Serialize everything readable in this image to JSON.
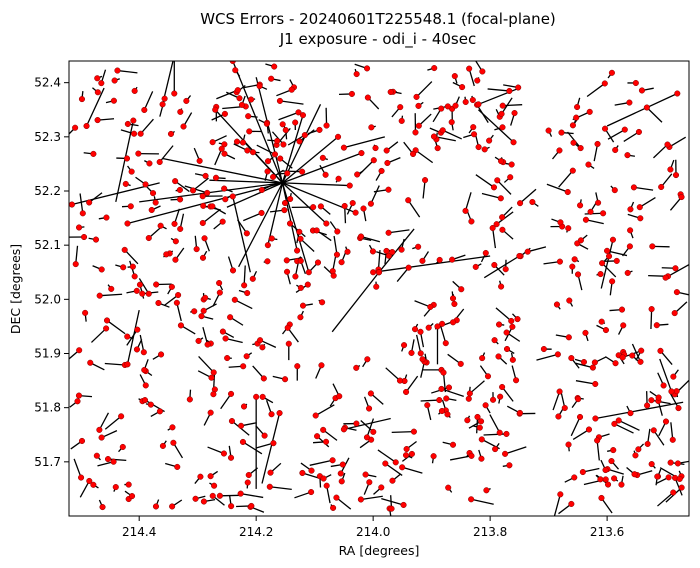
{
  "chart_data": {
    "type": "scatter",
    "title_line1": "WCS Errors - 20240601T225548.1 (focal-plane)",
    "title_line2": "J1 exposure - odi_i - 40sec",
    "xlabel": "RA [degrees]",
    "ylabel": "DEC [degrees]",
    "xlim": [
      214.52,
      213.46
    ],
    "ylim": [
      51.6,
      52.44
    ],
    "x_inverted": true,
    "grid": false,
    "x_ticks": [
      "214.4",
      "214.2",
      "214.0",
      "213.8",
      "213.6"
    ],
    "y_ticks": [
      "51.7",
      "51.8",
      "51.9",
      "52.0",
      "52.1",
      "52.2",
      "52.3",
      "52.4"
    ],
    "point_color": "#ff0000",
    "point_edge_color": "#800000",
    "vector_color": "#000000",
    "hub": {
      "ra": 214.155,
      "dec": 52.215
    },
    "hub_spokes": [
      {
        "ra": 214.24,
        "dec": 52.44
      },
      {
        "ra": 214.4,
        "dec": 52.18
      },
      {
        "ra": 214.27,
        "dec": 52.35
      },
      {
        "ra": 214.42,
        "dec": 52.14
      },
      {
        "ra": 214.22,
        "dec": 52.29
      },
      {
        "ra": 214.25,
        "dec": 52.17
      },
      {
        "ra": 214.18,
        "dec": 52.1
      },
      {
        "ra": 214.13,
        "dec": 52.09
      },
      {
        "ra": 214.08,
        "dec": 52.14
      },
      {
        "ra": 214.04,
        "dec": 52.21
      },
      {
        "ra": 214.06,
        "dec": 52.3
      },
      {
        "ra": 214.12,
        "dec": 52.34
      },
      {
        "ra": 214.02,
        "dec": 52.27
      },
      {
        "ra": 214.11,
        "dec": 52.05
      },
      {
        "ra": 214.2,
        "dec": 52.41
      },
      {
        "ra": 214.28,
        "dec": 52.22
      },
      {
        "ra": 214.36,
        "dec": 52.26
      },
      {
        "ra": 214.03,
        "dec": 52.16
      },
      {
        "ra": 214.09,
        "dec": 52.36
      },
      {
        "ra": 214.23,
        "dec": 52.06
      }
    ],
    "long_vectors": [
      {
        "ra": 214.515,
        "dec": 52.175,
        "dra": -0.15,
        "ddec": 0.04
      },
      {
        "ra": 214.49,
        "dec": 52.32,
        "dra": -0.03,
        "ddec": 0.07
      },
      {
        "ra": 214.36,
        "dec": 52.36,
        "dra": -0.02,
        "ddec": 0.09
      },
      {
        "ra": 214.34,
        "dec": 52.38,
        "dra": 0.0,
        "ddec": 0.06
      },
      {
        "ra": 214.41,
        "dec": 52.33,
        "dra": 0.03,
        "ddec": -0.15
      },
      {
        "ra": 214.05,
        "dec": 52.28,
        "dra": -0.07,
        "ddec": 0.02
      },
      {
        "ra": 214.0,
        "dec": 52.05,
        "dra": -0.2,
        "ddec": 0.03
      },
      {
        "ra": 213.99,
        "dec": 52.05,
        "dra": 0.08,
        "ddec": -0.11
      },
      {
        "ra": 213.99,
        "dec": 52.05,
        "dra": -0.06,
        "ddec": 0.08
      },
      {
        "ra": 214.24,
        "dec": 52.19,
        "dra": -0.03,
        "ddec": -0.14
      },
      {
        "ra": 214.16,
        "dec": 51.79,
        "dra": 0.03,
        "ddec": -0.13
      },
      {
        "ra": 213.62,
        "dec": 51.78,
        "dra": -0.15,
        "ddec": 0.03
      },
      {
        "ra": 213.48,
        "dec": 52.38,
        "dra": 0.12,
        "ddec": -0.06
      },
      {
        "ra": 213.76,
        "dec": 52.29,
        "dra": 0.06,
        "ddec": 0.06
      },
      {
        "ra": 213.82,
        "dec": 52.36,
        "dra": -0.07,
        "ddec": 0.03
      },
      {
        "ra": 213.49,
        "dec": 51.83,
        "dra": 0.02,
        "ddec": 0.06
      },
      {
        "ra": 213.68,
        "dec": 51.64,
        "dra": 0.02,
        "ddec": -0.08
      },
      {
        "ra": 214.42,
        "dec": 51.88,
        "dra": -0.02,
        "ddec": 0.1
      },
      {
        "ra": 213.75,
        "dec": 52.08,
        "dra": 0.06,
        "ddec": -0.04
      },
      {
        "ra": 213.89,
        "dec": 51.95,
        "dra": 0.0,
        "ddec": -0.07
      },
      {
        "ra": 214.05,
        "dec": 51.76,
        "dra": -0.08,
        "ddec": 0.02
      },
      {
        "ra": 213.59,
        "dec": 52.11,
        "dra": 0.02,
        "ddec": -0.09
      },
      {
        "ra": 213.5,
        "dec": 52.04,
        "dra": -0.05,
        "ddec": 0.03
      },
      {
        "ra": 214.2,
        "dec": 51.82,
        "dra": 0.0,
        "ddec": -0.17
      }
    ],
    "scatter_seed": 20240601,
    "scatter_count": 620,
    "scatter_vector_mean": 0.022
  }
}
